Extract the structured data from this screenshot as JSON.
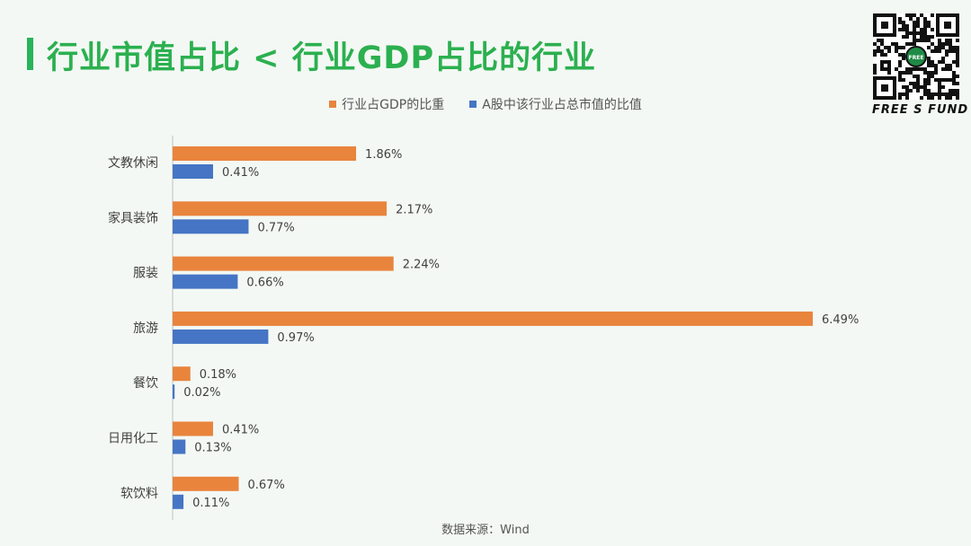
{
  "title": "行业市值占比 < 行业GDP占比的行业",
  "brand": "FREE S FUND",
  "colors": {
    "title": "#2bb04f",
    "gdp": "#e9843d",
    "mktcap": "#4575c4",
    "axis": "#bfbfbf"
  },
  "source": "数据来源：Wind",
  "chart_data": {
    "type": "bar",
    "orientation": "horizontal",
    "categories": [
      "文教休闲",
      "家具装饰",
      "服装",
      "旅游",
      "餐饮",
      "日用化工",
      "软饮料"
    ],
    "series": [
      {
        "name": "行业占GDP的比重",
        "values": [
          1.86,
          2.17,
          2.24,
          6.49,
          0.18,
          0.41,
          0.67
        ],
        "labels": [
          "1.86%",
          "2.17%",
          "2.24%",
          "6.49%",
          "0.18%",
          "0.41%",
          "0.67%"
        ]
      },
      {
        "name": "A股中该行业占总市值的比值",
        "values": [
          0.41,
          0.77,
          0.66,
          0.97,
          0.02,
          0.13,
          0.11
        ],
        "labels": [
          "0.41%",
          "0.77%",
          "0.66%",
          "0.97%",
          "0.02%",
          "0.13%",
          "0.11%"
        ]
      }
    ],
    "unit": "%",
    "xlim": [
      0,
      6.6
    ],
    "grid": false,
    "legend_position": "top"
  }
}
